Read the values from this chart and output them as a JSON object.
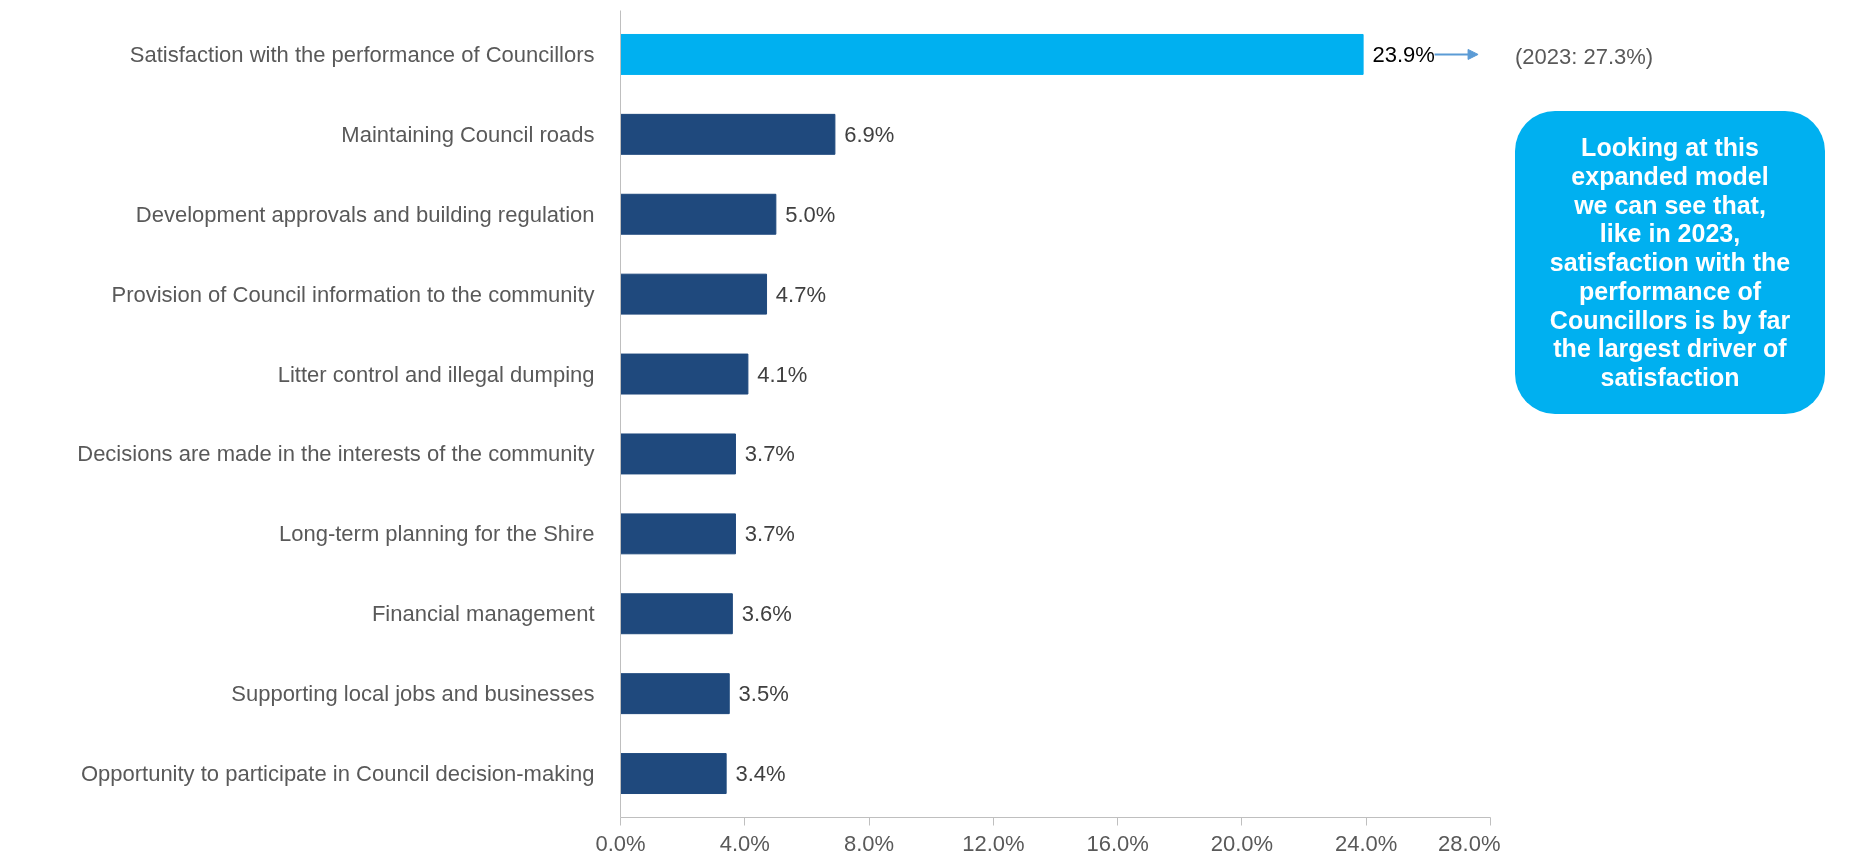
{
  "chart_data": {
    "type": "bar",
    "orientation": "horizontal",
    "categories": [
      "Satisfaction with the performance of Councillors",
      "Maintaining Council roads",
      "Development approvals and building regulation",
      "Provision of Council information to the community",
      "Litter control and illegal dumping",
      "Decisions are made in the interests of the community",
      "Long-term planning for the Shire",
      "Financial management",
      "Supporting local jobs and businesses",
      "Opportunity to participate in Council decision-making"
    ],
    "values": [
      23.9,
      6.9,
      5.0,
      4.7,
      4.1,
      3.7,
      3.7,
      3.6,
      3.5,
      3.4
    ],
    "colors": [
      "#00b0f0",
      "#1f497d",
      "#1f497d",
      "#1f497d",
      "#1f497d",
      "#1f497d",
      "#1f497d",
      "#1f497d",
      "#1f497d",
      "#1f497d"
    ],
    "value_labels": [
      "23.9%",
      "6.9%",
      "5.0%",
      "4.7%",
      "4.1%",
      "3.7%",
      "3.7%",
      "3.6%",
      "3.5%",
      "3.4%"
    ],
    "xlim": [
      0,
      28
    ],
    "xticks": [
      {
        "value": 0,
        "label": "0.0%"
      },
      {
        "value": 4,
        "label": "4.0%"
      },
      {
        "value": 8,
        "label": "8.0%"
      },
      {
        "value": 12,
        "label": "12.0%"
      },
      {
        "value": 16,
        "label": "16.0%"
      },
      {
        "value": 20,
        "label": "20.0%"
      },
      {
        "value": 24,
        "label": "24.0%"
      },
      {
        "value": 28,
        "label": "28.0%"
      }
    ],
    "grid": false,
    "annotations": [
      "(2023: 27.3%)",
      "Looking at this\nexpanded model\nwe can see that,\nlike in 2023,\nsatisfaction with the\nperformance of\nCouncillors is by far\nthe largest driver of\nsatisfaction"
    ]
  }
}
